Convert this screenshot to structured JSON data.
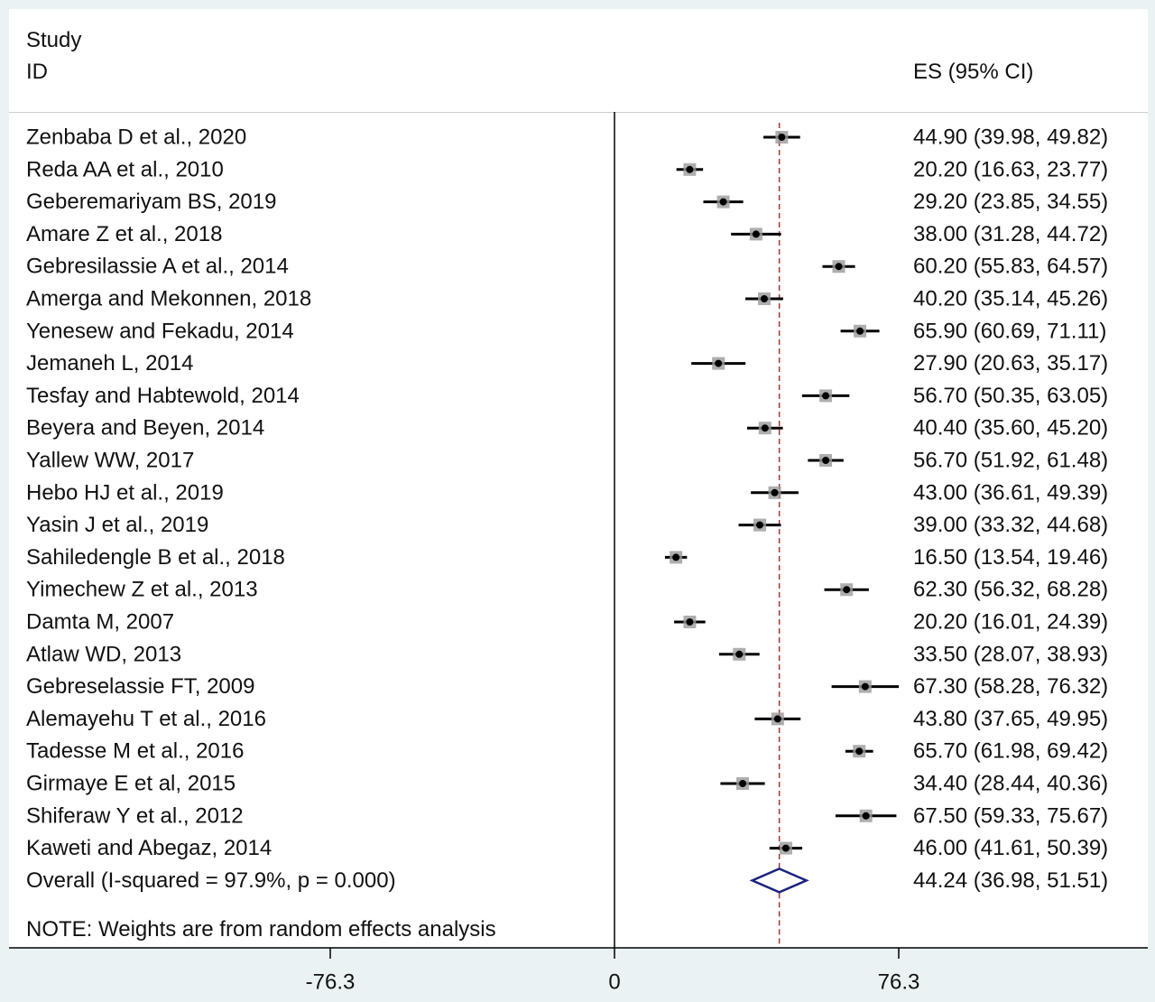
{
  "header": {
    "study_label": "Study",
    "id_label": "ID",
    "es_label": "ES (95% CI)"
  },
  "note": "NOTE: Weights are from random effects analysis",
  "colors": {
    "marker": "#000000",
    "marker_box": "#9a9a9a",
    "ref_line": "#a83232",
    "diamond": "#1a237e",
    "background": "#eaf2f3"
  },
  "chart_data": {
    "type": "forest",
    "xlim": [
      -76.3,
      76.3
    ],
    "x_ticks": [
      {
        "value": -76.3,
        "label": "-76.3"
      },
      {
        "value": 0,
        "label": "0"
      },
      {
        "value": 76.3,
        "label": "76.3"
      }
    ],
    "studies": [
      {
        "name": "Zenbaba D et al., 2020",
        "es": 44.9,
        "lo": 39.98,
        "hi": 49.82,
        "label": "44.90 (39.98, 49.82)"
      },
      {
        "name": "Reda AA et al., 2010",
        "es": 20.2,
        "lo": 16.63,
        "hi": 23.77,
        "label": "20.20 (16.63, 23.77)"
      },
      {
        "name": "Geberemariyam BS, 2019",
        "es": 29.2,
        "lo": 23.85,
        "hi": 34.55,
        "label": "29.20 (23.85, 34.55)"
      },
      {
        "name": "Amare Z et al., 2018",
        "es": 38.0,
        "lo": 31.28,
        "hi": 44.72,
        "label": "38.00 (31.28, 44.72)"
      },
      {
        "name": "Gebresilassie A et al., 2014",
        "es": 60.2,
        "lo": 55.83,
        "hi": 64.57,
        "label": "60.20 (55.83, 64.57)"
      },
      {
        "name": "Amerga and Mekonnen, 2018",
        "es": 40.2,
        "lo": 35.14,
        "hi": 45.26,
        "label": "40.20 (35.14, 45.26)"
      },
      {
        "name": "Yenesew and Fekadu, 2014",
        "es": 65.9,
        "lo": 60.69,
        "hi": 71.11,
        "label": "65.90 (60.69, 71.11)"
      },
      {
        "name": "Jemaneh L, 2014",
        "es": 27.9,
        "lo": 20.63,
        "hi": 35.17,
        "label": "27.90 (20.63, 35.17)"
      },
      {
        "name": "Tesfay and Habtewold, 2014",
        "es": 56.7,
        "lo": 50.35,
        "hi": 63.05,
        "label": "56.70 (50.35, 63.05)"
      },
      {
        "name": "Beyera and Beyen, 2014",
        "es": 40.4,
        "lo": 35.6,
        "hi": 45.2,
        "label": "40.40 (35.60, 45.20)"
      },
      {
        "name": "Yallew WW, 2017",
        "es": 56.7,
        "lo": 51.92,
        "hi": 61.48,
        "label": "56.70 (51.92, 61.48)"
      },
      {
        "name": "Hebo HJ et al., 2019",
        "es": 43.0,
        "lo": 36.61,
        "hi": 49.39,
        "label": "43.00 (36.61, 49.39)"
      },
      {
        "name": "Yasin J et al., 2019",
        "es": 39.0,
        "lo": 33.32,
        "hi": 44.68,
        "label": "39.00 (33.32, 44.68)"
      },
      {
        "name": "Sahiledengle B et al., 2018",
        "es": 16.5,
        "lo": 13.54,
        "hi": 19.46,
        "label": "16.50 (13.54, 19.46)"
      },
      {
        "name": "Yimechew Z et al., 2013",
        "es": 62.3,
        "lo": 56.32,
        "hi": 68.28,
        "label": "62.30 (56.32, 68.28)"
      },
      {
        "name": "Damta M, 2007",
        "es": 20.2,
        "lo": 16.01,
        "hi": 24.39,
        "label": "20.20 (16.01, 24.39)"
      },
      {
        "name": "Atlaw WD, 2013",
        "es": 33.5,
        "lo": 28.07,
        "hi": 38.93,
        "label": "33.50 (28.07, 38.93)"
      },
      {
        "name": "Gebreselassie FT, 2009",
        "es": 67.3,
        "lo": 58.28,
        "hi": 76.32,
        "label": "67.30 (58.28, 76.32)"
      },
      {
        "name": "Alemayehu T et al., 2016",
        "es": 43.8,
        "lo": 37.65,
        "hi": 49.95,
        "label": "43.80 (37.65, 49.95)"
      },
      {
        "name": "Tadesse M et al., 2016",
        "es": 65.7,
        "lo": 61.98,
        "hi": 69.42,
        "label": "65.70 (61.98, 69.42)"
      },
      {
        "name": "Girmaye E et al, 2015",
        "es": 34.4,
        "lo": 28.44,
        "hi": 40.36,
        "label": "34.40 (28.44, 40.36)"
      },
      {
        "name": "Shiferaw Y et al., 2012",
        "es": 67.5,
        "lo": 59.33,
        "hi": 75.67,
        "label": "67.50 (59.33, 75.67)"
      },
      {
        "name": "Kaweti and  Abegaz, 2014",
        "es": 46.0,
        "lo": 41.61,
        "hi": 50.39,
        "label": "46.00 (41.61, 50.39)"
      }
    ],
    "overall": {
      "name": "Overall  (I-squared = 97.9%, p = 0.000)",
      "es": 44.24,
      "lo": 36.98,
      "hi": 51.51,
      "label": "44.24 (36.98, 51.51)"
    }
  }
}
